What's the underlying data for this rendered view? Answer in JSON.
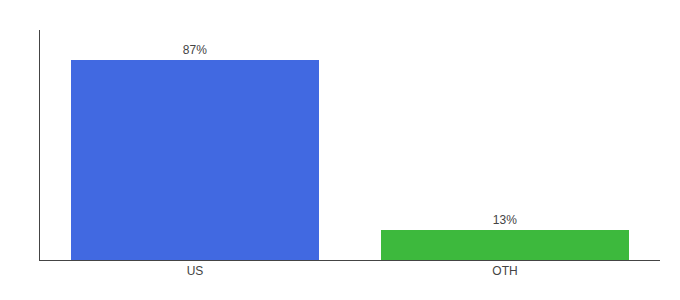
{
  "chart_data": {
    "type": "bar",
    "categories": [
      "US",
      "OTH"
    ],
    "values": [
      87,
      13
    ],
    "value_labels": [
      "87%",
      "13%"
    ],
    "data_labels": true,
    "colors": [
      "#4169e1",
      "#3db93d"
    ],
    "ylim": [
      0,
      100
    ],
    "tick_labels": "x",
    "grid": false
  }
}
